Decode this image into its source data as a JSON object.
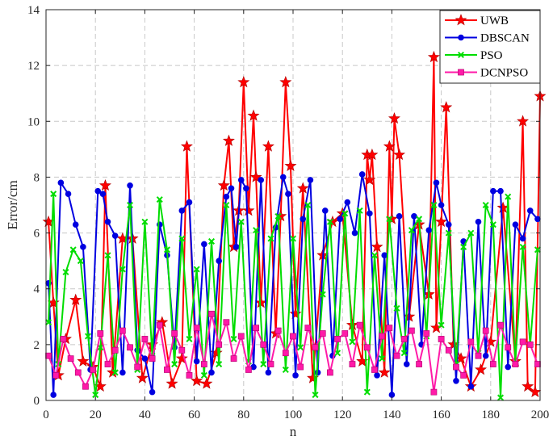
{
  "chart_data": {
    "type": "line",
    "title": "",
    "xlabel": "n",
    "ylabel": "Error/cm",
    "xlim": [
      0,
      200
    ],
    "ylim": [
      0,
      14
    ],
    "xticks": [
      0,
      20,
      40,
      60,
      80,
      100,
      120,
      140,
      160,
      180,
      200
    ],
    "yticks": [
      0,
      2,
      4,
      6,
      8,
      10,
      12,
      14
    ],
    "grid": true,
    "legend_position": "top-right",
    "series": [
      {
        "name": "UWB",
        "color": "#ff0000",
        "marker": "star",
        "x": [
          1,
          3,
          5,
          8,
          12,
          15,
          19,
          22,
          24,
          27,
          31,
          35,
          39,
          43,
          47,
          51,
          55,
          57,
          61,
          65,
          69,
          72,
          74,
          76,
          78,
          80,
          82,
          84,
          85,
          87,
          90,
          93,
          95,
          97,
          99,
          101,
          104,
          108,
          112,
          116,
          120,
          124,
          128,
          130,
          131,
          132,
          134,
          137,
          139,
          140,
          141,
          143,
          147,
          151,
          155,
          157,
          158,
          160,
          162,
          165,
          168,
          172,
          176,
          180,
          185,
          190,
          193,
          195,
          198,
          200
        ],
        "y": [
          6.4,
          3.5,
          0.9,
          2.2,
          3.6,
          1.4,
          1.2,
          0.5,
          7.7,
          1.0,
          5.8,
          5.8,
          0.8,
          2.0,
          2.8,
          0.6,
          1.5,
          9.1,
          0.7,
          0.6,
          1.7,
          7.7,
          9.3,
          5.5,
          6.8,
          11.4,
          6.8,
          10.2,
          8.0,
          3.5,
          9.1,
          2.4,
          6.6,
          11.4,
          8.4,
          3.1,
          7.6,
          0.8,
          5.2,
          6.4,
          6.7,
          2.7,
          1.4,
          8.8,
          7.9,
          8.8,
          5.5,
          1.0,
          9.1,
          6.5,
          10.1,
          8.8,
          3.0,
          6.3,
          3.8,
          12.3,
          2.6,
          6.4,
          10.5,
          2.0,
          1.5,
          0.5,
          1.1,
          2.1,
          6.9,
          1.4,
          10.0,
          0.5,
          0.3,
          10.9
        ]
      },
      {
        "name": "DBSCAN",
        "color": "#0000e0",
        "marker": "circle",
        "x": [
          1,
          3,
          6,
          9,
          12,
          15,
          18,
          21,
          23,
          25,
          28,
          31,
          34,
          37,
          40,
          43,
          46,
          49,
          52,
          55,
          58,
          61,
          64,
          67,
          70,
          73,
          75,
          77,
          79,
          81,
          84,
          87,
          90,
          93,
          96,
          98,
          101,
          104,
          107,
          110,
          113,
          116,
          119,
          122,
          125,
          128,
          131,
          134,
          137,
          140,
          143,
          146,
          149,
          152,
          155,
          158,
          160,
          163,
          166,
          169,
          172,
          175,
          178,
          181,
          184,
          187,
          190,
          193,
          196,
          199
        ],
        "y": [
          4.2,
          0.2,
          7.8,
          7.4,
          6.3,
          5.5,
          1.1,
          7.5,
          7.4,
          6.4,
          5.9,
          1.0,
          7.7,
          1.8,
          1.5,
          0.3,
          6.3,
          5.2,
          1.9,
          6.8,
          7.1,
          1.4,
          5.6,
          1.0,
          5.0,
          7.3,
          7.6,
          5.5,
          7.9,
          7.6,
          1.2,
          7.9,
          1.0,
          6.2,
          8.0,
          7.4,
          0.9,
          6.5,
          7.9,
          1.0,
          6.8,
          1.6,
          6.5,
          7.1,
          6.0,
          8.1,
          6.7,
          0.9,
          5.2,
          0.2,
          6.6,
          1.3,
          6.6,
          2.0,
          6.1,
          7.8,
          7.0,
          6.3,
          0.7,
          5.7,
          0.5,
          6.4,
          1.6,
          7.5,
          7.5,
          1.2,
          6.3,
          5.8,
          6.8,
          6.5
        ]
      },
      {
        "name": "PSO",
        "color": "#00dd00",
        "marker": "x",
        "x": [
          1,
          3,
          5,
          8,
          11,
          14,
          17,
          20,
          22,
          25,
          28,
          31,
          34,
          37,
          40,
          43,
          46,
          49,
          52,
          55,
          58,
          61,
          64,
          67,
          70,
          73,
          76,
          79,
          82,
          85,
          88,
          91,
          94,
          97,
          100,
          103,
          106,
          109,
          112,
          115,
          118,
          121,
          124,
          127,
          130,
          133,
          136,
          139,
          142,
          145,
          148,
          151,
          154,
          157,
          160,
          163,
          166,
          169,
          172,
          175,
          178,
          181,
          184,
          187,
          190,
          193,
          196,
          199
        ],
        "y": [
          2.8,
          7.4,
          1.3,
          4.6,
          5.4,
          5.0,
          2.3,
          0.2,
          1.9,
          5.2,
          1.0,
          4.7,
          7.0,
          1.1,
          6.4,
          1.6,
          7.2,
          5.4,
          1.3,
          5.8,
          2.2,
          4.7,
          0.9,
          5.7,
          1.3,
          7.0,
          2.2,
          6.4,
          1.4,
          6.1,
          1.3,
          5.8,
          6.6,
          1.1,
          5.8,
          1.9,
          7.0,
          0.2,
          3.8,
          6.4,
          1.7,
          6.7,
          2.1,
          6.8,
          0.3,
          5.2,
          1.5,
          6.5,
          3.3,
          1.7,
          6.1,
          6.5,
          2.3,
          7.0,
          2.7,
          6.0,
          1.3,
          5.5,
          6.0,
          1.7,
          7.0,
          6.3,
          0.1,
          7.3,
          1.4,
          5.5,
          2.0,
          5.4
        ]
      },
      {
        "name": "DCNPSO",
        "color": "#ff1aa8",
        "marker": "square",
        "x": [
          1,
          4,
          7,
          10,
          13,
          16,
          19,
          22,
          25,
          28,
          31,
          34,
          37,
          40,
          43,
          46,
          49,
          52,
          55,
          58,
          61,
          64,
          67,
          70,
          73,
          76,
          79,
          82,
          85,
          88,
          91,
          94,
          97,
          100,
          103,
          106,
          109,
          112,
          115,
          118,
          121,
          124,
          127,
          130,
          133,
          136,
          139,
          142,
          145,
          148,
          151,
          154,
          157,
          160,
          163,
          166,
          169,
          172,
          175,
          178,
          181,
          184,
          187,
          190,
          193,
          196,
          199
        ],
        "y": [
          1.6,
          0.9,
          2.2,
          1.5,
          1.0,
          0.5,
          1.1,
          2.4,
          1.3,
          1.8,
          2.5,
          1.9,
          1.2,
          2.2,
          1.5,
          2.7,
          1.1,
          2.4,
          1.8,
          0.9,
          2.6,
          1.3,
          3.1,
          2.0,
          2.8,
          1.5,
          2.3,
          1.1,
          2.6,
          2.0,
          1.3,
          2.5,
          1.7,
          2.3,
          1.2,
          2.6,
          1.9,
          2.4,
          1.0,
          2.2,
          2.4,
          1.3,
          2.7,
          1.9,
          1.1,
          2.3,
          2.6,
          1.6,
          2.2,
          2.5,
          1.3,
          2.4,
          0.3,
          2.2,
          1.8,
          1.2,
          0.9,
          2.1,
          1.6,
          2.5,
          1.3,
          2.7,
          1.9,
          1.3,
          2.1,
          2.0,
          1.3
        ]
      }
    ]
  }
}
